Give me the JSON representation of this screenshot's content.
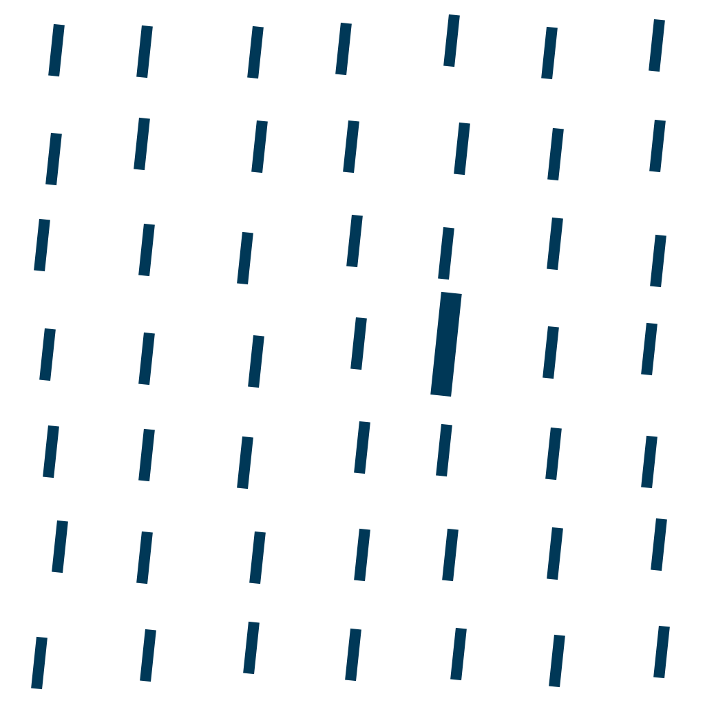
{
  "stimulus": {
    "type": "oddball-search-array",
    "grid": {
      "rows": 7,
      "columns": 7
    },
    "item_shape": "tilted-bar",
    "item_color": "#003857",
    "background_color": "#ffffff",
    "distractor_count": 48,
    "target_count": 1,
    "target": {
      "row": 4,
      "column": 5,
      "distinguishing_feature": "larger size"
    }
  }
}
